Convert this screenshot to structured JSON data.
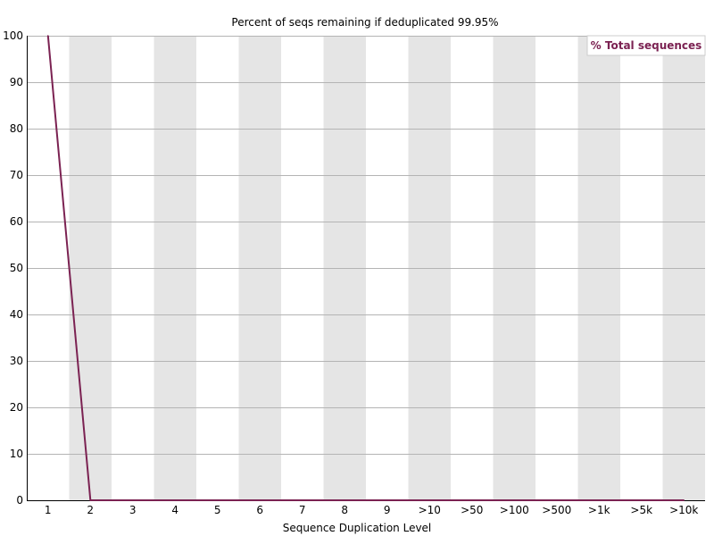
{
  "chart_data": {
    "type": "line",
    "title": "Percent of seqs remaining if deduplicated 99.95%",
    "xlabel": "Sequence Duplication Level",
    "ylabel": "",
    "categories": [
      "1",
      "2",
      "3",
      "4",
      "5",
      "6",
      "7",
      "8",
      "9",
      ">10",
      ">50",
      ">100",
      ">500",
      ">1k",
      ">5k",
      ">10k"
    ],
    "ylim": [
      0,
      100
    ],
    "yticks": [
      0,
      10,
      20,
      30,
      40,
      50,
      60,
      70,
      80,
      90,
      100
    ],
    "grid": true,
    "legend_position": "top-right",
    "series": [
      {
        "name": "% Total sequences",
        "color": "#7b2252",
        "values": [
          100,
          0,
          0,
          0,
          0,
          0,
          0,
          0,
          0,
          0,
          0,
          0,
          0,
          0,
          0,
          0
        ]
      }
    ]
  }
}
